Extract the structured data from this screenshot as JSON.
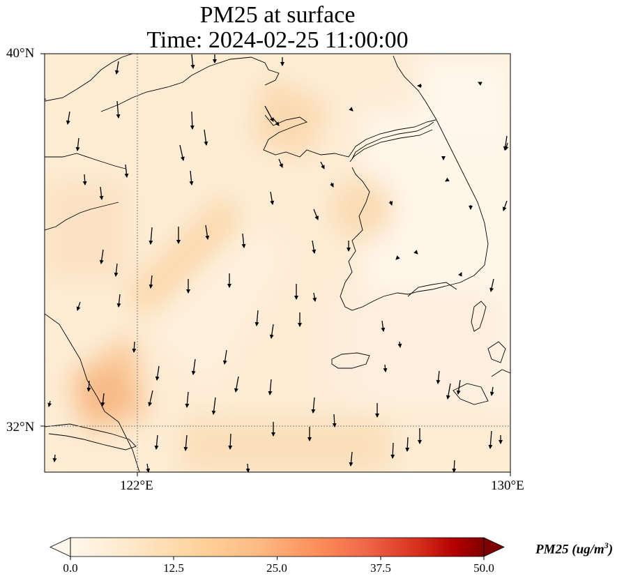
{
  "title": {
    "line1": "PM25 at surface",
    "line2": "Time: 2024-02-25 11:00:00"
  },
  "map": {
    "lat_range": [
      31.3,
      40.0
    ],
    "lon_range": [
      120.0,
      130.0
    ],
    "lat_ticks": [
      "40°N",
      "32°N"
    ],
    "lon_ticks": [
      "122°E",
      "130°E"
    ],
    "gridlines": "dotted at 122°E and 32°N",
    "vectors": "wind arrows, predominantly pointing south"
  },
  "colorbar": {
    "colormap": "OrRd",
    "min": 0.0,
    "max": 50.0,
    "tick_labels": [
      "0.0",
      "12.5",
      "25.0",
      "37.5",
      "50.0"
    ],
    "label_text": "PM25 (ug/m",
    "label_superscript": "3",
    "label_close": ")",
    "extend": "both"
  },
  "colors": {
    "low": "#fff7ec",
    "mid_low": "#fdd49e",
    "mid": "#fc8d59",
    "high": "#d7301f",
    "max": "#7f0000",
    "grid": "#808080",
    "coast": "#000000"
  }
}
